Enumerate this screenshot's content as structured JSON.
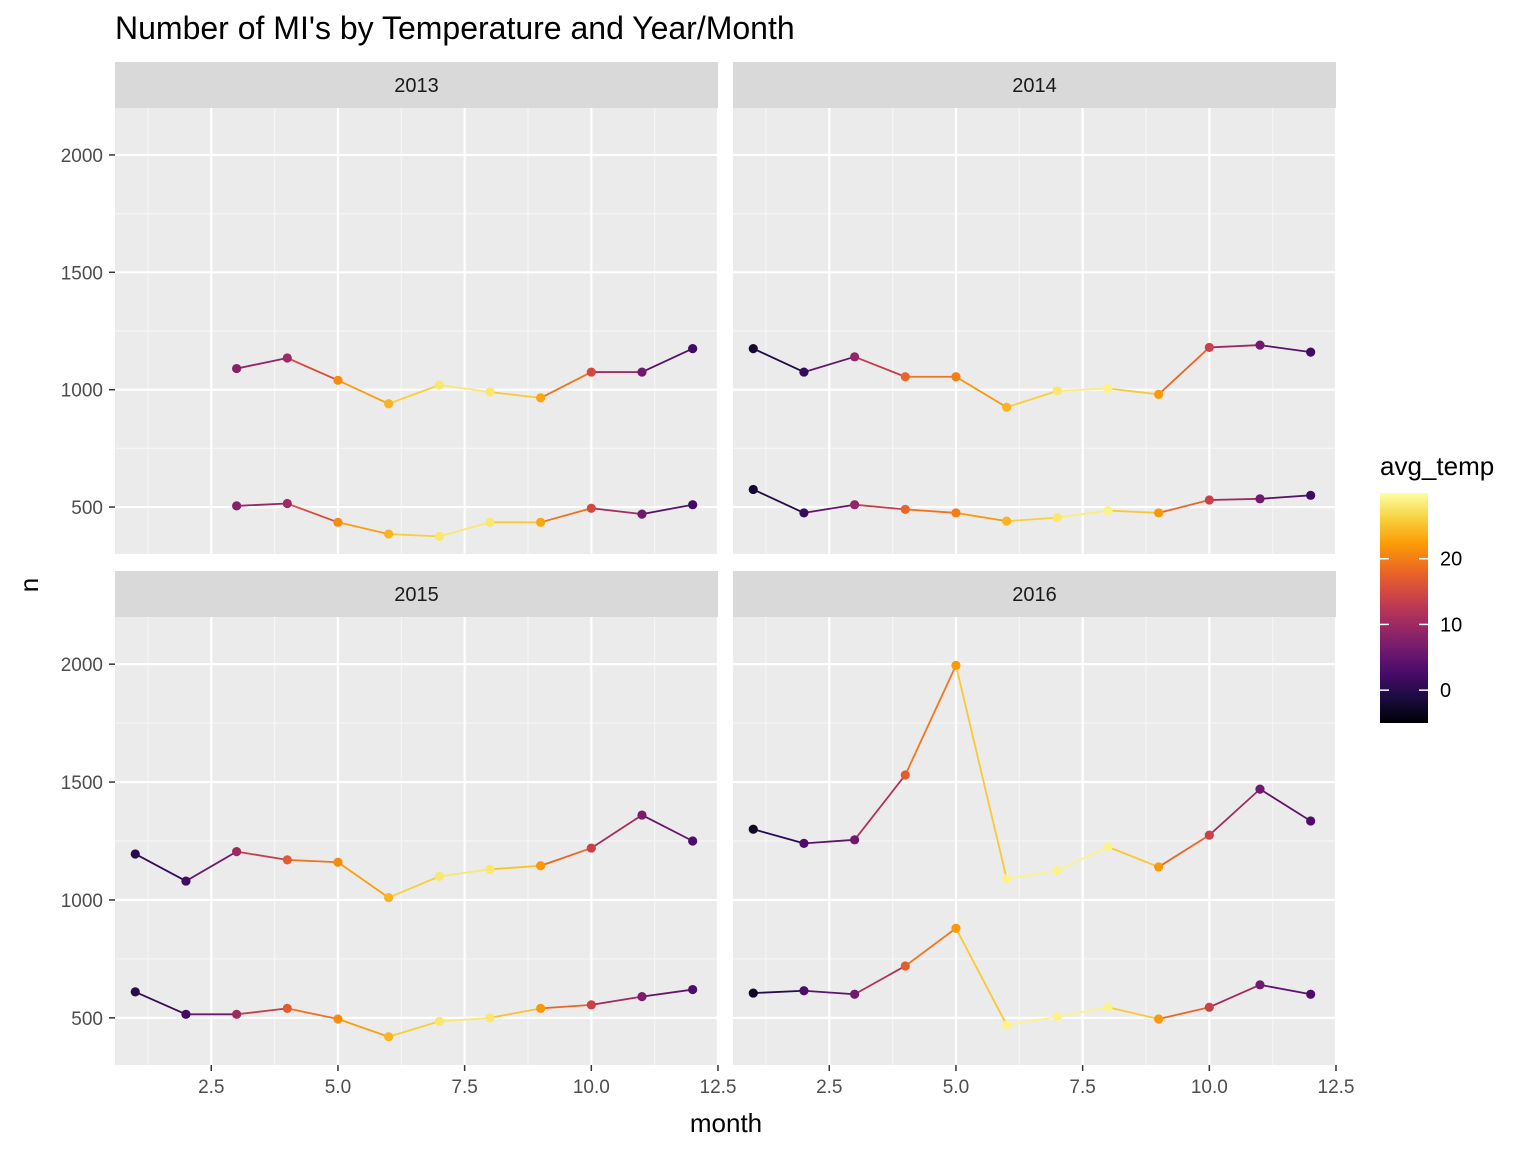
{
  "chart_data": {
    "type": "line",
    "title": "Number of MI's by Temperature and Year/Month",
    "xlabel": "month",
    "ylabel": "n",
    "xlim": [
      0.6,
      12.5
    ],
    "ylim": [
      300,
      2200
    ],
    "x_ticks": [
      2.5,
      5.0,
      7.5,
      10.0,
      12.5
    ],
    "x_tick_labels": [
      "2.5",
      "5.0",
      "7.5",
      "10.0",
      "12.5"
    ],
    "y_ticks": [
      500,
      1000,
      1500,
      2000
    ],
    "y_tick_labels": [
      "500",
      "1000",
      "1500",
      "2000"
    ],
    "grid": true,
    "legend": {
      "title": "avg_temp",
      "type": "colorbar",
      "placement": "right",
      "range": [
        -5,
        30
      ],
      "ticks": [
        0,
        10,
        20
      ],
      "tick_labels": [
        "0",
        "10",
        "20"
      ],
      "palette": [
        "#000004",
        "#1b0c41",
        "#4a0c6b",
        "#781c6d",
        "#a52c60",
        "#cf4446",
        "#ed6925",
        "#fb9b06",
        "#f7d13d",
        "#fcffa4"
      ]
    },
    "panels": [
      {
        "label": "2013",
        "series": [
          {
            "x": [
              3,
              4,
              5,
              6,
              7,
              8,
              9,
              10,
              11,
              12
            ],
            "y": [
              1090,
              1135,
              1040,
              940,
              1020,
              990,
              965,
              1075,
              1075,
              1175
            ],
            "temp": [
              8,
              10,
              21,
              24,
              28,
              28,
              23,
              15,
              6,
              2
            ]
          },
          {
            "x": [
              3,
              4,
              5,
              6,
              7,
              8,
              9,
              10,
              11,
              12
            ],
            "y": [
              505,
              515,
              435,
              385,
              375,
              435,
              435,
              495,
              470,
              510
            ],
            "temp": [
              8,
              10,
              21,
              24,
              28,
              28,
              23,
              15,
              6,
              2
            ]
          }
        ]
      },
      {
        "label": "2014",
        "series": [
          {
            "x": [
              1,
              2,
              3,
              4,
              5,
              6,
              7,
              8,
              9,
              10,
              11,
              12
            ],
            "y": [
              1175,
              1075,
              1140,
              1055,
              1055,
              925,
              995,
              1005,
              980,
              1180,
              1190,
              1160
            ],
            "temp": [
              -2,
              1,
              9,
              18,
              20,
              24,
              28,
              29,
              22,
              14,
              6,
              2
            ]
          },
          {
            "x": [
              1,
              2,
              3,
              4,
              5,
              6,
              7,
              8,
              9,
              10,
              11,
              12
            ],
            "y": [
              575,
              475,
              510,
              490,
              475,
              440,
              455,
              485,
              475,
              530,
              535,
              550
            ],
            "temp": [
              -2,
              1,
              9,
              18,
              20,
              24,
              28,
              29,
              22,
              14,
              6,
              2
            ]
          }
        ]
      },
      {
        "label": "2015",
        "series": [
          {
            "x": [
              1,
              2,
              3,
              4,
              5,
              6,
              7,
              8,
              9,
              10,
              11,
              12
            ],
            "y": [
              1195,
              1080,
              1205,
              1170,
              1160,
              1010,
              1100,
              1130,
              1145,
              1220,
              1360,
              1250
            ],
            "temp": [
              0,
              2,
              10,
              17,
              21,
              24,
              28,
              28,
              22,
              14,
              7,
              3
            ]
          },
          {
            "x": [
              1,
              2,
              3,
              4,
              5,
              6,
              7,
              8,
              9,
              10,
              11,
              12
            ],
            "y": [
              610,
              515,
              515,
              540,
              495,
              420,
              485,
              500,
              540,
              555,
              590,
              620
            ],
            "temp": [
              0,
              2,
              10,
              17,
              21,
              24,
              28,
              28,
              22,
              14,
              7,
              3
            ]
          }
        ]
      },
      {
        "label": "2016",
        "series": [
          {
            "x": [
              1,
              2,
              3,
              4,
              5,
              6,
              7,
              8,
              9,
              10,
              11,
              12
            ],
            "y": [
              1300,
              1240,
              1255,
              1530,
              1995,
              1090,
              1125,
              1225,
              1140,
              1275,
              1470,
              1335
            ],
            "temp": [
              -3,
              3,
              6,
              17,
              22,
              29,
              29,
              29,
              22,
              14,
              6,
              3
            ]
          },
          {
            "x": [
              1,
              2,
              3,
              4,
              5,
              6,
              7,
              8,
              9,
              10,
              11,
              12
            ],
            "y": [
              605,
              615,
              600,
              720,
              880,
              470,
              505,
              545,
              495,
              545,
              640,
              600
            ],
            "temp": [
              -3,
              3,
              6,
              17,
              22,
              29,
              29,
              29,
              22,
              14,
              6,
              3
            ]
          }
        ]
      }
    ]
  }
}
